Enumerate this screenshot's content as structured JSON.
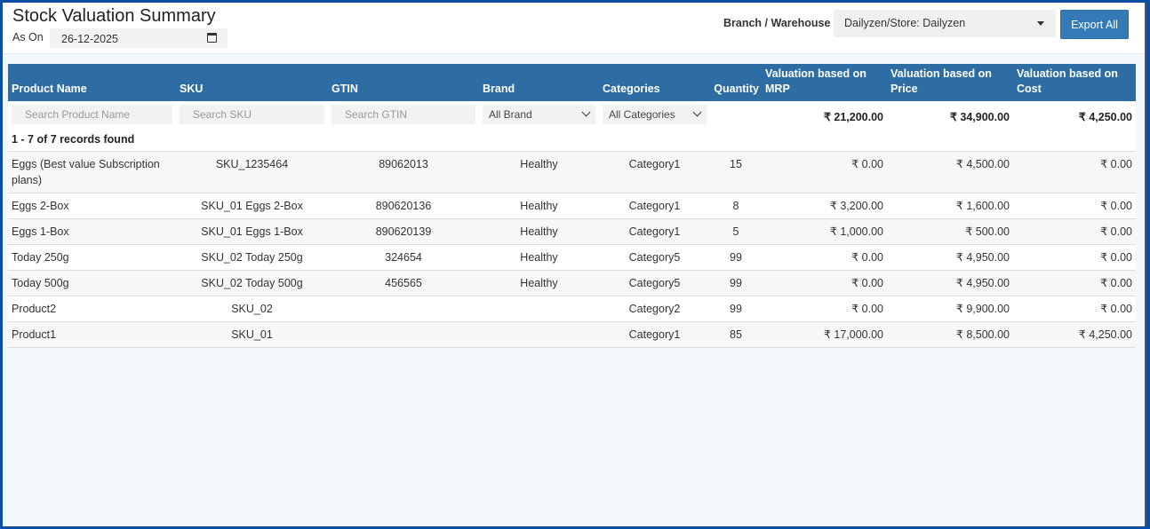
{
  "header": {
    "title": "Stock Valuation Summary",
    "as_on_label": "As On",
    "as_on_value": "26-12-2025",
    "branch_label": "Branch / Warehouse",
    "branch_value": "Dailyzen/Store: Dailyzen",
    "export_label": "Export All"
  },
  "colors": {
    "accent": "#2e6da4",
    "frame": "#0b4ea6"
  },
  "table": {
    "columns": [
      "Product Name",
      "SKU",
      "GTIN",
      "Brand",
      "Categories",
      "Quantity",
      "Valuation based on MRP",
      "Valuation based on Price",
      "Valuation based on Cost"
    ],
    "filters": {
      "product_placeholder": "Search Product Name",
      "sku_placeholder": "Search SKU",
      "gtin_placeholder": "Search GTIN",
      "brand_value": "All Brand",
      "category_value": "All Categories"
    },
    "totals": {
      "mrp": "₹ 21,200.00",
      "price": "₹ 34,900.00",
      "cost": "₹ 4,250.00"
    },
    "records_found": "1 - 7 of 7 records found",
    "rows": [
      [
        "Eggs (Best value Subscription plans)",
        "SKU_1235464",
        "89062013",
        "Healthy",
        "Category1",
        "15",
        "₹ 0.00",
        "₹ 4,500.00",
        "₹ 0.00"
      ],
      [
        "Eggs 2-Box",
        "SKU_01 Eggs 2-Box",
        "890620136",
        "Healthy",
        "Category1",
        "8",
        "₹ 3,200.00",
        "₹ 1,600.00",
        "₹ 0.00"
      ],
      [
        "Eggs 1-Box",
        "SKU_01 Eggs 1-Box",
        "890620139",
        "Healthy",
        "Category1",
        "5",
        "₹ 1,000.00",
        "₹ 500.00",
        "₹ 0.00"
      ],
      [
        "Today 250g",
        "SKU_02 Today 250g",
        "324654",
        "Healthy",
        "Category5",
        "99",
        "₹ 0.00",
        "₹ 4,950.00",
        "₹ 0.00"
      ],
      [
        "Today 500g",
        "SKU_02 Today 500g",
        "456565",
        "Healthy",
        "Category5",
        "99",
        "₹ 0.00",
        "₹ 4,950.00",
        "₹ 0.00"
      ],
      [
        "Product2",
        "SKU_02",
        "",
        "",
        "Category2",
        "99",
        "₹ 0.00",
        "₹ 9,900.00",
        "₹ 0.00"
      ],
      [
        "Product1",
        "SKU_01",
        "",
        "",
        "Category1",
        "85",
        "₹ 17,000.00",
        "₹ 8,500.00",
        "₹ 4,250.00"
      ]
    ]
  }
}
